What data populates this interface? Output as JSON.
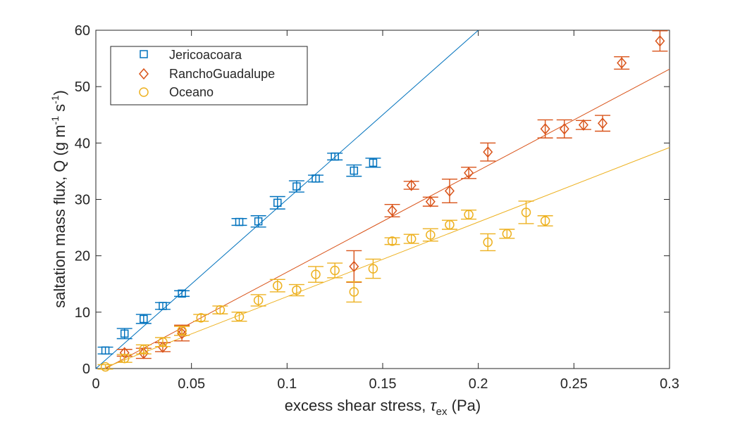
{
  "chart_data": {
    "type": "scatter",
    "xlabel": {
      "prefix": "excess shear stress, ",
      "symbol": "τ",
      "subscript": "ex",
      "suffix": " (Pa)"
    },
    "ylabel": {
      "prefix": "saltation mass flux, Q (g m",
      "sup1": "-1",
      "mid": " s",
      "sup2": "-1",
      "suffix": ")"
    },
    "xlim": [
      0,
      0.3
    ],
    "ylim": [
      0,
      60
    ],
    "xticks": [
      0,
      0.05,
      0.1,
      0.15,
      0.2,
      0.25,
      0.3
    ],
    "xtick_labels": [
      "0",
      "0.05",
      "0.1",
      "0.15",
      "0.2",
      "0.25",
      "0.3"
    ],
    "yticks": [
      0,
      10,
      20,
      30,
      40,
      50,
      60
    ],
    "ytick_labels": [
      "0",
      "10",
      "20",
      "30",
      "40",
      "50",
      "60"
    ],
    "grid": false,
    "legend_position": "top-left",
    "series": [
      {
        "name": "Jericoacoara",
        "marker": "square",
        "color": "#0072BD",
        "points": [
          {
            "x": 0.005,
            "y": 3.2,
            "err": 0.6
          },
          {
            "x": 0.015,
            "y": 6.2,
            "err": 0.9
          },
          {
            "x": 0.025,
            "y": 8.8,
            "err": 0.8
          },
          {
            "x": 0.035,
            "y": 11.1,
            "err": 0.6
          },
          {
            "x": 0.045,
            "y": 13.3,
            "err": 0.5
          },
          {
            "x": 0.075,
            "y": 26.0,
            "err": 0.6
          },
          {
            "x": 0.085,
            "y": 26.1,
            "err": 1.0
          },
          {
            "x": 0.095,
            "y": 29.4,
            "err": 1.1
          },
          {
            "x": 0.105,
            "y": 32.3,
            "err": 1.0
          },
          {
            "x": 0.115,
            "y": 33.7,
            "err": 0.6
          },
          {
            "x": 0.125,
            "y": 37.6,
            "err": 0.6
          },
          {
            "x": 0.135,
            "y": 35.1,
            "err": 1.0
          },
          {
            "x": 0.145,
            "y": 36.5,
            "err": 0.8
          }
        ],
        "fit": {
          "x": [
            0,
            0.2
          ],
          "y": [
            0,
            60
          ]
        }
      },
      {
        "name": "RanchoGuadalupe",
        "marker": "diamond",
        "color": "#D95319",
        "points": [
          {
            "x": 0.015,
            "y": 2.8,
            "err": 0.6
          },
          {
            "x": 0.025,
            "y": 2.7,
            "err": 0.9
          },
          {
            "x": 0.035,
            "y": 3.8,
            "err": 0.8
          },
          {
            "x": 0.045,
            "y": 6.2,
            "err": 1.3
          },
          {
            "x": 0.045,
            "y": 6.8,
            "err": 0.9
          },
          {
            "x": 0.135,
            "y": 18.1,
            "err": 2.8
          },
          {
            "x": 0.155,
            "y": 28.0,
            "err": 1.1
          },
          {
            "x": 0.165,
            "y": 32.5,
            "err": 0.7
          },
          {
            "x": 0.175,
            "y": 29.6,
            "err": 0.8
          },
          {
            "x": 0.185,
            "y": 31.5,
            "err": 2.1
          },
          {
            "x": 0.195,
            "y": 34.7,
            "err": 1.0
          },
          {
            "x": 0.205,
            "y": 38.4,
            "err": 1.6
          },
          {
            "x": 0.235,
            "y": 42.5,
            "err": 1.6
          },
          {
            "x": 0.245,
            "y": 42.5,
            "err": 1.6
          },
          {
            "x": 0.255,
            "y": 43.2,
            "err": 0.8
          },
          {
            "x": 0.265,
            "y": 43.5,
            "err": 1.4
          },
          {
            "x": 0.275,
            "y": 54.2,
            "err": 1.1
          },
          {
            "x": 0.295,
            "y": 58.1,
            "err": 1.8
          }
        ],
        "fit": {
          "x": [
            0.005,
            0.3
          ],
          "y": [
            0,
            53.1
          ]
        }
      },
      {
        "name": "Oceano",
        "marker": "circle",
        "color": "#EDB120",
        "points": [
          {
            "x": 0.005,
            "y": 0.3,
            "err": 0.4
          },
          {
            "x": 0.015,
            "y": 1.8,
            "err": 0.7
          },
          {
            "x": 0.025,
            "y": 3.4,
            "err": 0.8
          },
          {
            "x": 0.035,
            "y": 4.7,
            "err": 0.8
          },
          {
            "x": 0.045,
            "y": 6.7,
            "err": 0.8
          },
          {
            "x": 0.055,
            "y": 9.0,
            "err": 0.6
          },
          {
            "x": 0.065,
            "y": 10.4,
            "err": 0.7
          },
          {
            "x": 0.075,
            "y": 9.2,
            "err": 0.8
          },
          {
            "x": 0.085,
            "y": 12.1,
            "err": 1.0
          },
          {
            "x": 0.095,
            "y": 14.7,
            "err": 1.1
          },
          {
            "x": 0.105,
            "y": 13.9,
            "err": 1.0
          },
          {
            "x": 0.115,
            "y": 16.7,
            "err": 1.4
          },
          {
            "x": 0.125,
            "y": 17.4,
            "err": 1.3
          },
          {
            "x": 0.135,
            "y": 13.6,
            "err": 1.8
          },
          {
            "x": 0.145,
            "y": 17.7,
            "err": 1.7
          },
          {
            "x": 0.155,
            "y": 22.6,
            "err": 0.6
          },
          {
            "x": 0.165,
            "y": 23.0,
            "err": 0.8
          },
          {
            "x": 0.175,
            "y": 23.7,
            "err": 1.1
          },
          {
            "x": 0.185,
            "y": 25.5,
            "err": 0.8
          },
          {
            "x": 0.195,
            "y": 27.3,
            "err": 0.8
          },
          {
            "x": 0.205,
            "y": 22.4,
            "err": 1.5
          },
          {
            "x": 0.215,
            "y": 23.9,
            "err": 0.8
          },
          {
            "x": 0.225,
            "y": 27.7,
            "err": 2.0
          },
          {
            "x": 0.235,
            "y": 26.2,
            "err": 0.9
          }
        ],
        "fit": {
          "x": [
            0.005,
            0.3
          ],
          "y": [
            0.2,
            39.2
          ]
        }
      }
    ]
  }
}
